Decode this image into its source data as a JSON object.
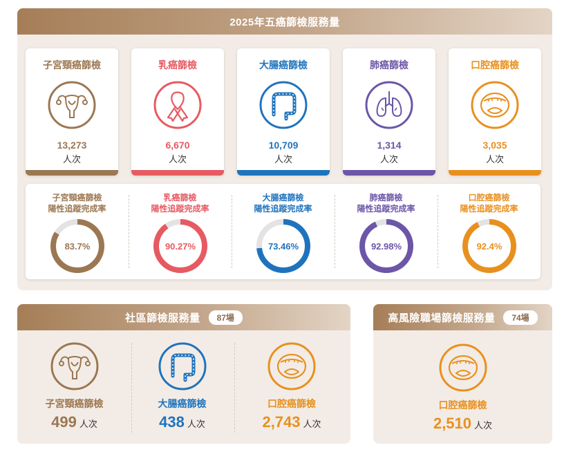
{
  "main": {
    "title": "2025年五癌篩檢服務量",
    "unit": "人次",
    "cards": [
      {
        "name": "子宮頸癌篩檢",
        "count": "13,273",
        "color": "#9b7752",
        "icon": "uterus-icon"
      },
      {
        "name": "乳癌篩檢",
        "count": "6,670",
        "color": "#e65a62",
        "icon": "ribbon-icon"
      },
      {
        "name": "大腸癌篩檢",
        "count": "10,709",
        "color": "#1f73bd",
        "icon": "colon-icon"
      },
      {
        "name": "肺癌篩檢",
        "count": "1,314",
        "color": "#6b56a8",
        "icon": "lungs-icon"
      },
      {
        "name": "口腔癌篩檢",
        "count": "3,035",
        "color": "#e8901f",
        "icon": "mouth-icon"
      }
    ],
    "rates": [
      {
        "line1": "子宮頸癌篩檢",
        "line2": "陽性追蹤完成率",
        "value": 83.7,
        "label": "83.7%",
        "color": "#9b7752"
      },
      {
        "line1": "乳癌篩檢",
        "line2": "陽性追蹤完成率",
        "value": 90.27,
        "label": "90.27%",
        "color": "#e65a62"
      },
      {
        "line1": "大腸癌篩檢",
        "line2": "陽性追蹤完成率",
        "value": 73.46,
        "label": "73.46%",
        "color": "#1f73bd"
      },
      {
        "line1": "肺癌篩檢",
        "line2": "陽性追蹤完成率",
        "value": 92.98,
        "label": "92.98%",
        "color": "#6b56a8"
      },
      {
        "line1": "口腔癌篩檢",
        "line2": "陽性追蹤完成率",
        "value": 92.4,
        "label": "92.4%",
        "color": "#e8901f"
      }
    ]
  },
  "community": {
    "title": "社區篩檢服務量",
    "badge": "87場",
    "unit": "人次",
    "items": [
      {
        "name": "子宮頸癌篩檢",
        "count": "499",
        "color": "#9b7752",
        "icon": "uterus-icon"
      },
      {
        "name": "大腸癌篩檢",
        "count": "438",
        "color": "#1f73bd",
        "icon": "colon-icon"
      },
      {
        "name": "口腔癌篩檢",
        "count": "2,743",
        "color": "#e8901f",
        "icon": "mouth-icon"
      }
    ]
  },
  "workplace": {
    "title": "高風險職場篩檢服務量",
    "badge": "74場",
    "unit": "人次",
    "items": [
      {
        "name": "口腔癌篩檢",
        "count": "2,510",
        "color": "#e8901f",
        "icon": "mouth-icon"
      }
    ]
  },
  "chart_data": {
    "type": "table",
    "title": "2025年五癌篩檢服務量",
    "categories": [
      "子宮頸癌篩檢",
      "乳癌篩檢",
      "大腸癌篩檢",
      "肺癌篩檢",
      "口腔癌篩檢"
    ],
    "series": [
      {
        "name": "人次",
        "values": [
          13273,
          6670,
          10709,
          1314,
          3035
        ]
      },
      {
        "name": "陽性追蹤完成率",
        "values": [
          83.7,
          90.27,
          73.46,
          92.98,
          92.4
        ]
      }
    ]
  }
}
